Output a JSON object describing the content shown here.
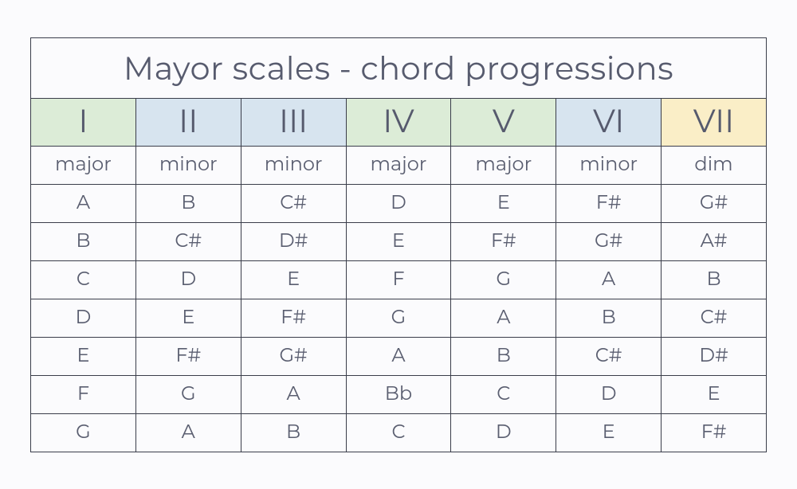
{
  "title": "Mayor scales - chord progressions",
  "table": {
    "type": "table",
    "columns": 7,
    "column_widths_pct": [
      14.28,
      14.28,
      14.28,
      14.28,
      14.28,
      14.28,
      14.28
    ],
    "colors": {
      "background": "#fbfbfd",
      "border": "#3a3d4a",
      "text": "#5a5e70",
      "green": "#dcecd7",
      "blue": "#d7e4ef",
      "yellow": "#faeec7"
    },
    "fonts": {
      "title_size_pt": 30,
      "roman_size_pt": 30,
      "body_size_pt": 18,
      "family": "Montserrat / sans-serif",
      "weight": 400
    },
    "roman": [
      {
        "label": "I",
        "bg": "#dcecd7"
      },
      {
        "label": "II",
        "bg": "#d7e4ef"
      },
      {
        "label": "III",
        "bg": "#d7e4ef"
      },
      {
        "label": "IV",
        "bg": "#dcecd7"
      },
      {
        "label": "V",
        "bg": "#dcecd7"
      },
      {
        "label": "VI",
        "bg": "#d7e4ef"
      },
      {
        "label": "VII",
        "bg": "#faeec7"
      }
    ],
    "quality": [
      "major",
      "minor",
      "minor",
      "major",
      "major",
      "minor",
      "dim"
    ],
    "rows": [
      [
        "A",
        "B",
        "C#",
        "D",
        "E",
        "F#",
        "G#"
      ],
      [
        "B",
        "C#",
        "D#",
        "E",
        "F#",
        "G#",
        "A#"
      ],
      [
        "C",
        "D",
        "E",
        "F",
        "G",
        "A",
        "B"
      ],
      [
        "D",
        "E",
        "F#",
        "G",
        "A",
        "B",
        "C#"
      ],
      [
        "E",
        "F#",
        "G#",
        "A",
        "B",
        "C#",
        "D#"
      ],
      [
        "F",
        "G",
        "A",
        "Bb",
        "C",
        "D",
        "E"
      ],
      [
        "G",
        "A",
        "B",
        "C",
        "D",
        "E",
        "F#"
      ]
    ]
  }
}
